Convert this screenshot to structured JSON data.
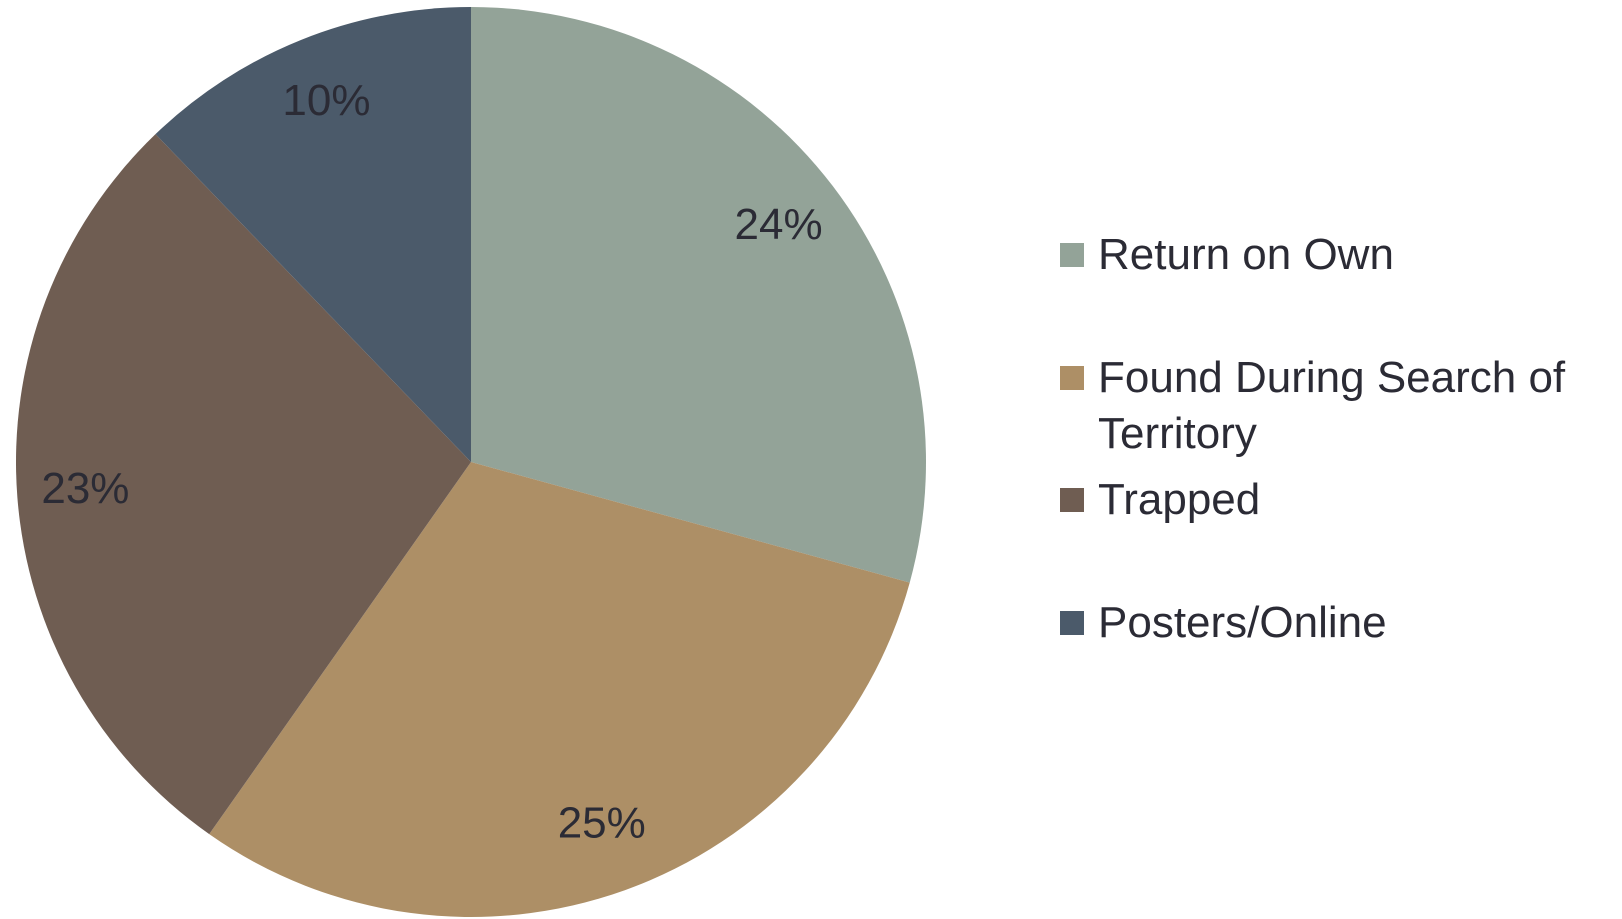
{
  "chart_data": {
    "type": "pie",
    "categories": [
      "Return on Own",
      "Found During Search of Territory",
      "Trapped",
      "Posters/Online"
    ],
    "values": [
      24,
      25,
      23,
      10
    ],
    "value_labels": [
      "24%",
      "25%",
      "23%",
      "10%"
    ],
    "colors": [
      "#93a398",
      "#ad8f66",
      "#6f5d52",
      "#4b5a6a"
    ],
    "legend": "right"
  }
}
